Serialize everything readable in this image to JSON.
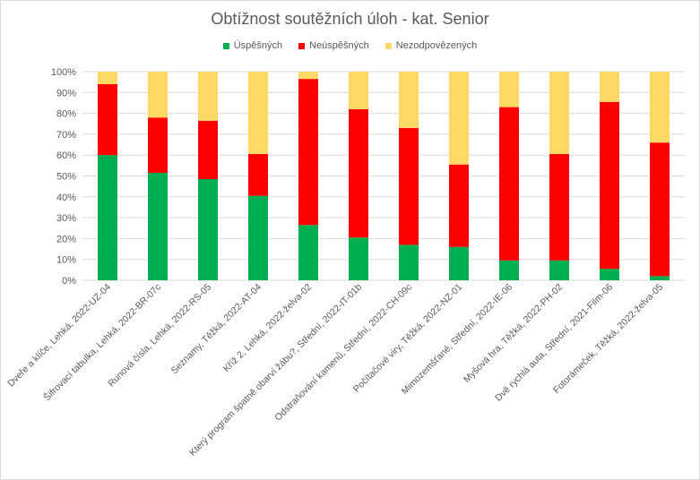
{
  "chart_data": {
    "type": "bar",
    "stacked": true,
    "title": "Obtížnost soutěžních úloh - kat. Senior",
    "xlabel": "",
    "ylabel": "",
    "ylim": [
      0,
      100
    ],
    "yticks": [
      "0%",
      "10%",
      "20%",
      "30%",
      "40%",
      "50%",
      "60%",
      "70%",
      "80%",
      "90%",
      "100%"
    ],
    "grid": true,
    "legend_position": "top",
    "categories": [
      "Dveře a klíče, Lehká, 2022-UZ-04",
      "Šifrovací tabulka, Lehká, 2022-BR-07c",
      "Runová čísla, Lehká, 2022-RS-05",
      "Seznamy, Těžká, 2022-AT-04",
      "Kříž 2, Lehká, 2022-želva-02",
      "Který program špatně obarví žábu?, Střední, 2022-IT-01b",
      "Odstraňování kamenů, Střední, 2022-CH-09c",
      "Počítačové viry, Těžká, 2022-NZ-01",
      "Mimozemšťané, Střední, 2022-IE-06",
      "Myšová hra, Těžká, 2022-PH-02",
      "Dvě rychlá auta, Střední, 2021-Film-06",
      "Fotorámeček, Těžká, 2022-želva-05"
    ],
    "series": [
      {
        "name": "Úspěšných",
        "color": "#00b050",
        "values": [
          60,
          51.5,
          48.5,
          40.5,
          26.5,
          20.5,
          17,
          16,
          9.5,
          9.5,
          5.5,
          2
        ]
      },
      {
        "name": "Neúspěšných",
        "color": "#ff0000",
        "values": [
          34,
          26.5,
          28,
          20,
          70,
          61.5,
          56,
          39.5,
          73.5,
          51,
          80,
          64
        ]
      },
      {
        "name": "Nezodpovězených",
        "color": "#ffd966",
        "values": [
          6,
          22,
          23.5,
          39.5,
          3.5,
          18,
          27,
          44.5,
          17,
          39.5,
          14.5,
          34
        ]
      }
    ]
  }
}
